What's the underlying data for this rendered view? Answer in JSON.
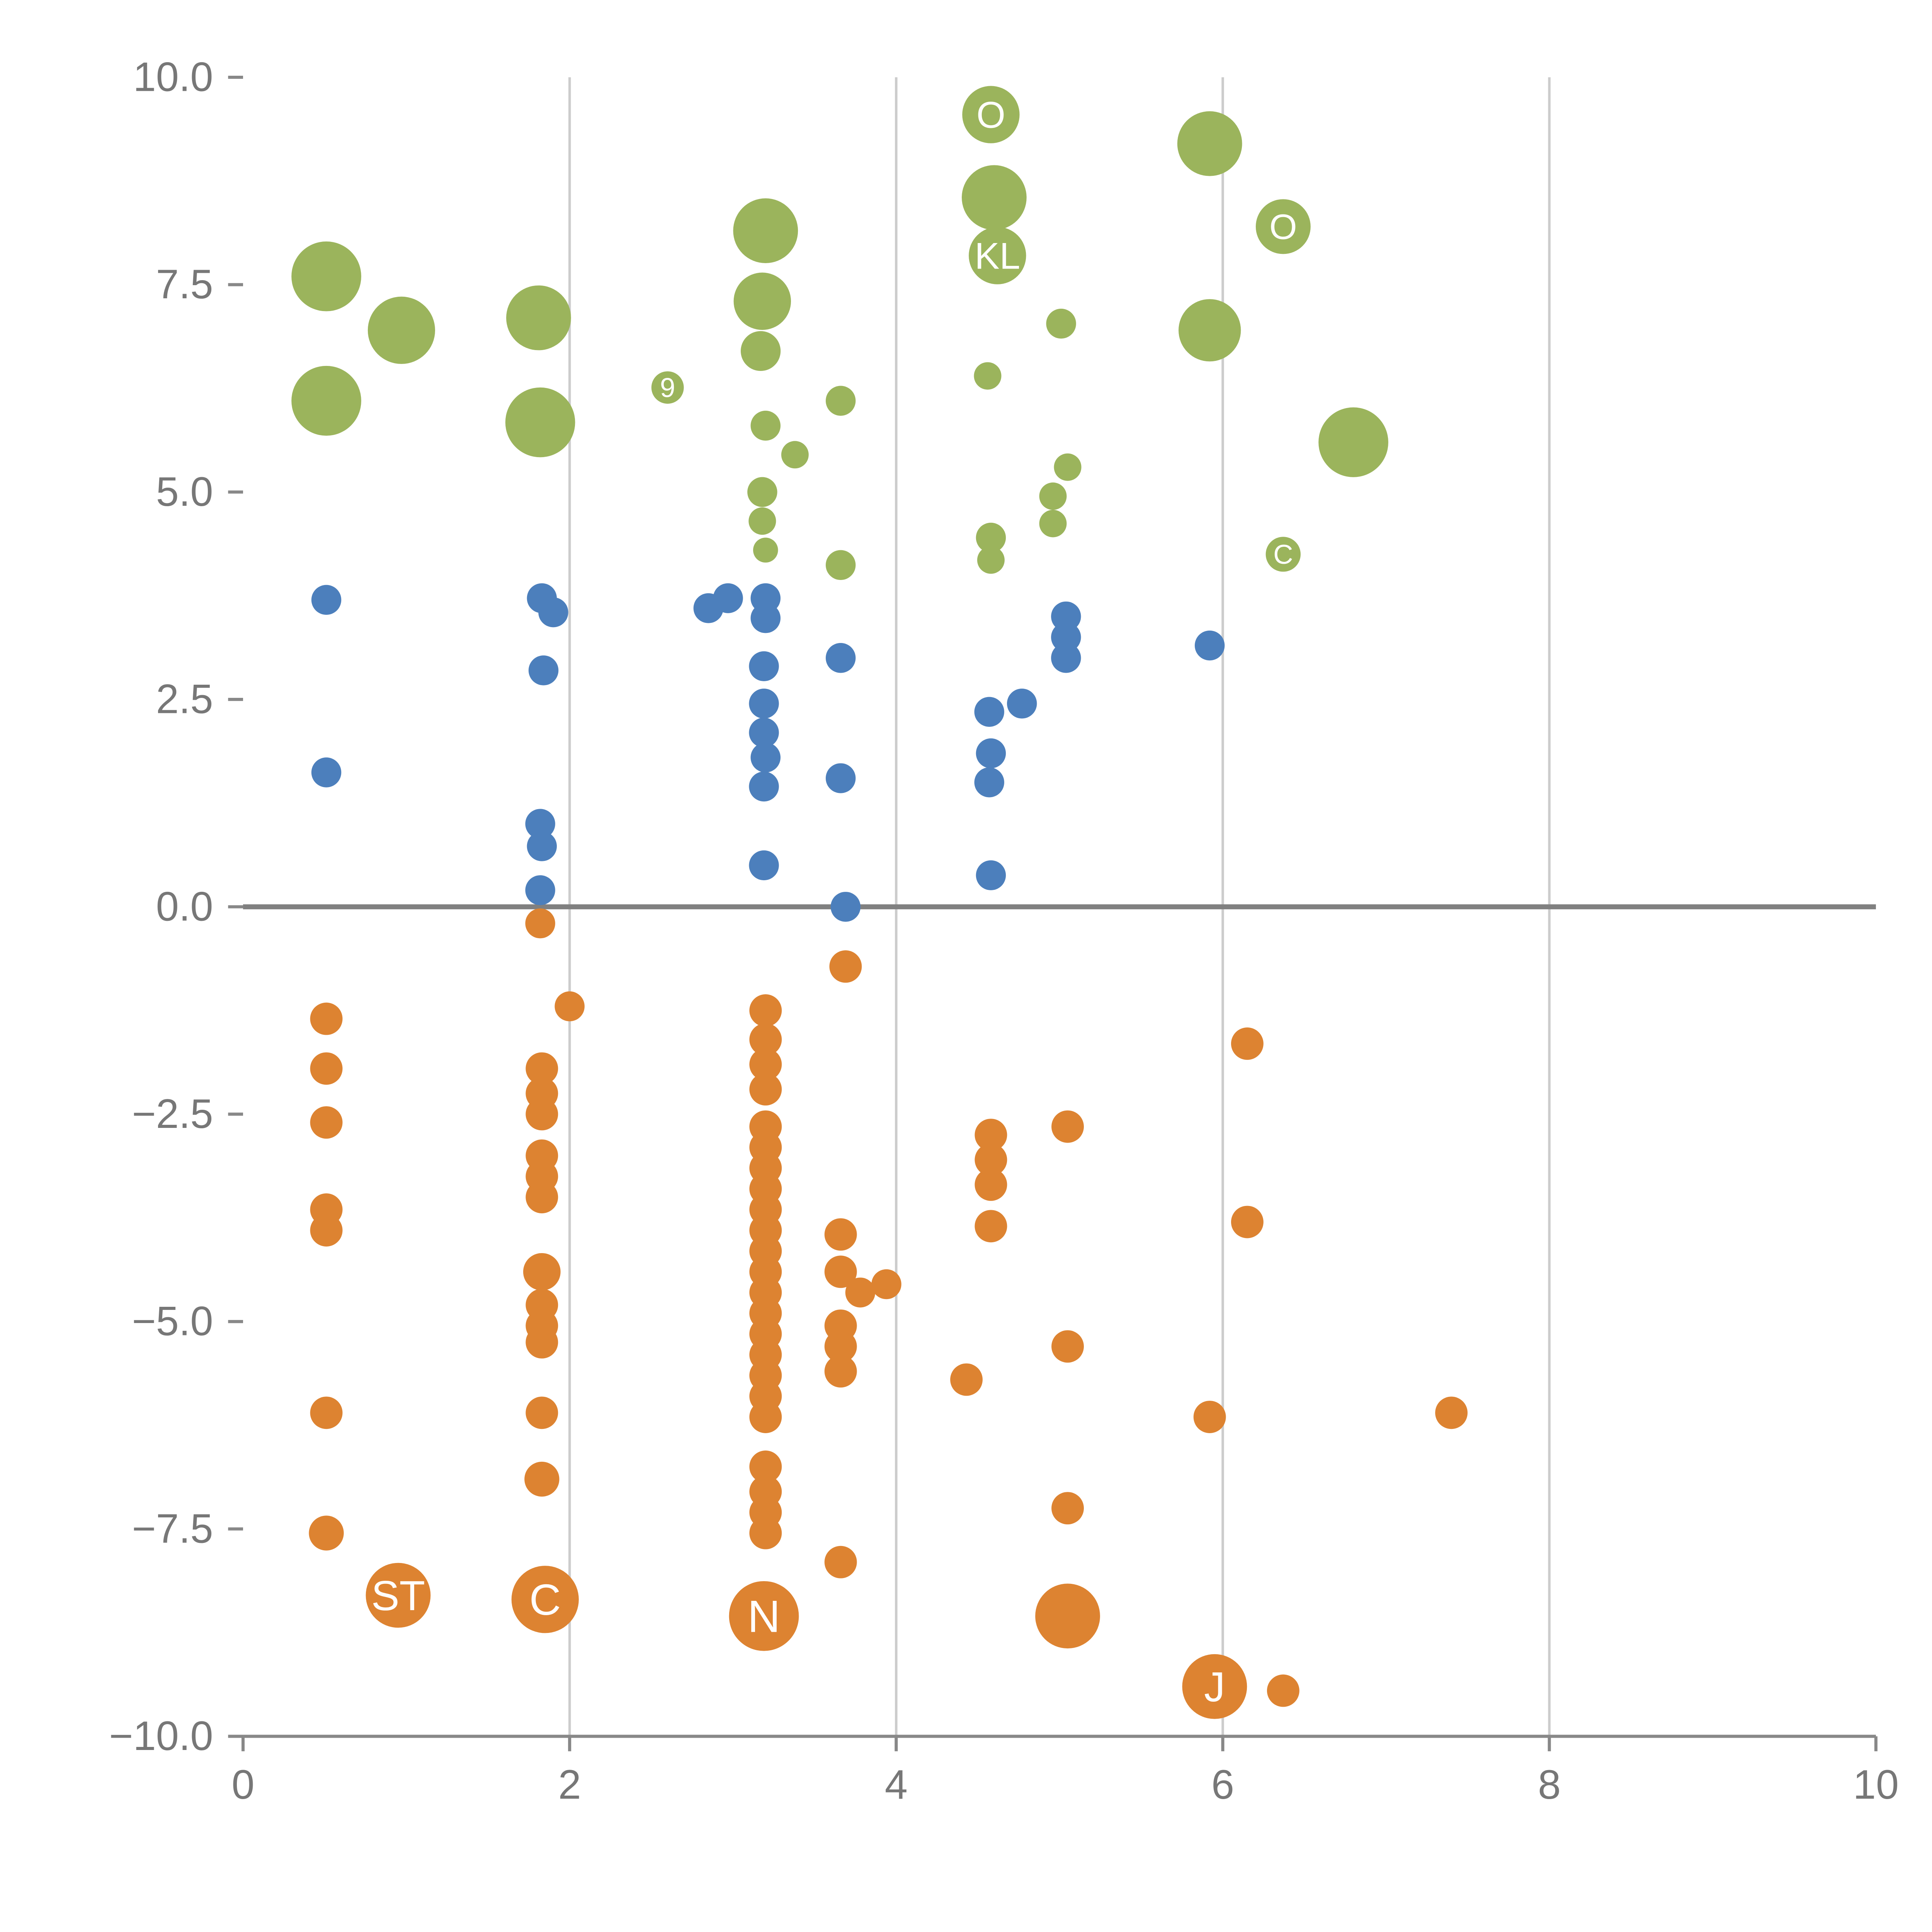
{
  "chart_data": {
    "type": "scatter",
    "title": "",
    "xlabel": "",
    "ylabel": "",
    "xlim": [
      0,
      10
    ],
    "ylim": [
      -10,
      10
    ],
    "x_ticks": [
      0,
      2,
      4,
      6,
      8,
      10
    ],
    "x_tick_labels": [
      "0",
      "2",
      "4",
      "6",
      "8",
      "10"
    ],
    "y_ticks": [
      -10,
      -7.5,
      -5,
      -2.5,
      0,
      2.5,
      5,
      7.5,
      10
    ],
    "y_tick_labels": [
      "−10.0",
      "−7.5",
      "−5.0",
      "−2.5",
      "0.0",
      "2.5",
      "5.0",
      "7.5",
      "10.0"
    ],
    "grid_x": [
      2,
      4,
      6,
      8
    ],
    "grid": "vertical-only",
    "legend_position": "none",
    "zero_line_y": 0,
    "colors": {
      "green": "#9bb45c",
      "blue": "#4c7fbc",
      "orange": "#dd8331",
      "grid": "#cccccc",
      "zero_line": "#808080",
      "axis": "#888888",
      "tick_label": "#777777",
      "bubble_label": "#ffffff"
    },
    "series": [
      {
        "name": "green",
        "color": "#9bb45c",
        "points": [
          [
            0.51,
            7.6,
            28
          ],
          [
            0.97,
            6.95,
            27
          ],
          [
            0.51,
            6.1,
            28
          ],
          [
            1.81,
            7.1,
            26
          ],
          [
            1.82,
            5.84,
            28
          ],
          [
            2.6,
            6.26,
            13,
            "9"
          ],
          [
            3.2,
            8.15,
            26
          ],
          [
            3.18,
            7.3,
            23
          ],
          [
            3.17,
            6.7,
            16
          ],
          [
            3.2,
            5.8,
            12
          ],
          [
            3.38,
            5.45,
            11
          ],
          [
            3.66,
            6.1,
            12
          ],
          [
            3.18,
            5.0,
            12
          ],
          [
            3.18,
            4.65,
            11
          ],
          [
            3.2,
            4.3,
            10
          ],
          [
            3.66,
            4.12,
            12
          ],
          [
            4.58,
            9.55,
            23,
            "O"
          ],
          [
            4.6,
            8.55,
            26
          ],
          [
            4.62,
            7.85,
            23,
            "KL"
          ],
          [
            5.01,
            7.03,
            12
          ],
          [
            4.56,
            6.4,
            11
          ],
          [
            4.58,
            4.45,
            12
          ],
          [
            4.58,
            4.18,
            11
          ],
          [
            4.96,
            4.95,
            11
          ],
          [
            4.96,
            4.62,
            11
          ],
          [
            5.05,
            5.3,
            11
          ],
          [
            5.92,
            9.2,
            26
          ],
          [
            5.92,
            6.95,
            25
          ],
          [
            6.37,
            8.2,
            22,
            "O"
          ],
          [
            6.8,
            5.6,
            28
          ],
          [
            6.37,
            4.25,
            14,
            "C"
          ]
        ]
      },
      {
        "name": "blue",
        "color": "#4c7fbc",
        "points": [
          [
            0.51,
            3.7,
            12
          ],
          [
            0.51,
            1.62,
            12
          ],
          [
            1.83,
            3.72,
            12
          ],
          [
            1.9,
            3.55,
            12
          ],
          [
            1.84,
            2.85,
            12
          ],
          [
            1.82,
            1.0,
            12
          ],
          [
            1.83,
            0.73,
            12
          ],
          [
            1.82,
            0.2,
            12
          ],
          [
            2.85,
            3.6,
            12
          ],
          [
            2.97,
            3.72,
            12
          ],
          [
            3.2,
            3.72,
            12
          ],
          [
            3.2,
            3.48,
            12
          ],
          [
            3.19,
            2.9,
            12
          ],
          [
            3.19,
            2.45,
            12
          ],
          [
            3.19,
            2.1,
            12
          ],
          [
            3.2,
            1.8,
            12
          ],
          [
            3.19,
            1.45,
            12
          ],
          [
            3.19,
            0.5,
            12
          ],
          [
            3.66,
            3.0,
            12
          ],
          [
            3.66,
            1.55,
            12
          ],
          [
            3.69,
            0.0,
            12
          ],
          [
            4.57,
            2.35,
            12
          ],
          [
            4.77,
            2.45,
            12
          ],
          [
            4.58,
            1.85,
            12
          ],
          [
            4.57,
            1.5,
            12
          ],
          [
            4.58,
            0.38,
            12
          ],
          [
            5.04,
            3.5,
            12
          ],
          [
            5.04,
            3.25,
            12
          ],
          [
            5.04,
            3.0,
            12
          ],
          [
            5.92,
            3.15,
            12
          ]
        ]
      },
      {
        "name": "orange",
        "color": "#dd8331",
        "points": [
          [
            0.51,
            -1.35,
            13
          ],
          [
            0.51,
            -1.95,
            13
          ],
          [
            0.51,
            -2.6,
            13
          ],
          [
            0.51,
            -3.65,
            13
          ],
          [
            0.51,
            -3.9,
            13
          ],
          [
            0.51,
            -6.1,
            13
          ],
          [
            0.51,
            -7.55,
            14
          ],
          [
            0.95,
            -8.3,
            26,
            "ST"
          ],
          [
            1.82,
            -0.2,
            12
          ],
          [
            2.0,
            -1.2,
            12
          ],
          [
            1.83,
            -1.95,
            13
          ],
          [
            1.83,
            -2.25,
            13
          ],
          [
            1.83,
            -2.5,
            13
          ],
          [
            1.83,
            -3.0,
            13
          ],
          [
            1.83,
            -3.25,
            13
          ],
          [
            1.83,
            -3.5,
            13
          ],
          [
            1.83,
            -4.4,
            15
          ],
          [
            1.83,
            -4.8,
            13
          ],
          [
            1.83,
            -5.05,
            13
          ],
          [
            1.83,
            -5.25,
            13
          ],
          [
            1.83,
            -6.1,
            13
          ],
          [
            1.83,
            -6.9,
            14
          ],
          [
            1.85,
            -8.35,
            27,
            "C"
          ],
          [
            3.2,
            -1.25,
            13
          ],
          [
            3.2,
            -1.6,
            13
          ],
          [
            3.2,
            -1.9,
            13
          ],
          [
            3.2,
            -2.2,
            13
          ],
          [
            3.2,
            -2.65,
            13
          ],
          [
            3.2,
            -2.9,
            13
          ],
          [
            3.2,
            -3.15,
            13
          ],
          [
            3.2,
            -3.4,
            13
          ],
          [
            3.2,
            -3.65,
            13
          ],
          [
            3.2,
            -3.9,
            13
          ],
          [
            3.2,
            -4.15,
            13
          ],
          [
            3.2,
            -4.4,
            13
          ],
          [
            3.2,
            -4.65,
            13
          ],
          [
            3.2,
            -4.9,
            13
          ],
          [
            3.2,
            -5.15,
            13
          ],
          [
            3.2,
            -5.4,
            13
          ],
          [
            3.2,
            -5.65,
            13
          ],
          [
            3.2,
            -5.9,
            13
          ],
          [
            3.2,
            -6.15,
            13
          ],
          [
            3.2,
            -6.75,
            13
          ],
          [
            3.2,
            -7.05,
            13
          ],
          [
            3.2,
            -7.3,
            13
          ],
          [
            3.2,
            -7.55,
            13
          ],
          [
            3.19,
            -8.55,
            28,
            "N"
          ],
          [
            3.69,
            -0.72,
            13
          ],
          [
            3.66,
            -3.95,
            13
          ],
          [
            3.66,
            -4.4,
            13
          ],
          [
            3.78,
            -4.65,
            12
          ],
          [
            3.94,
            -4.55,
            12
          ],
          [
            3.66,
            -5.05,
            13
          ],
          [
            3.66,
            -5.3,
            13
          ],
          [
            3.66,
            -5.6,
            13
          ],
          [
            3.66,
            -7.9,
            13
          ],
          [
            4.43,
            -5.7,
            13
          ],
          [
            4.58,
            -2.75,
            13
          ],
          [
            4.58,
            -3.05,
            13
          ],
          [
            4.58,
            -3.35,
            13
          ],
          [
            4.58,
            -3.85,
            13
          ],
          [
            5.05,
            -2.65,
            13
          ],
          [
            5.05,
            -5.3,
            13
          ],
          [
            5.05,
            -7.25,
            13
          ],
          [
            5.05,
            -8.55,
            26
          ],
          [
            5.92,
            -6.15,
            13
          ],
          [
            5.95,
            -9.4,
            26,
            "J"
          ],
          [
            6.15,
            -1.65,
            13
          ],
          [
            6.15,
            -3.8,
            13
          ],
          [
            6.37,
            -9.45,
            13
          ],
          [
            7.4,
            -6.1,
            13
          ]
        ]
      }
    ]
  }
}
